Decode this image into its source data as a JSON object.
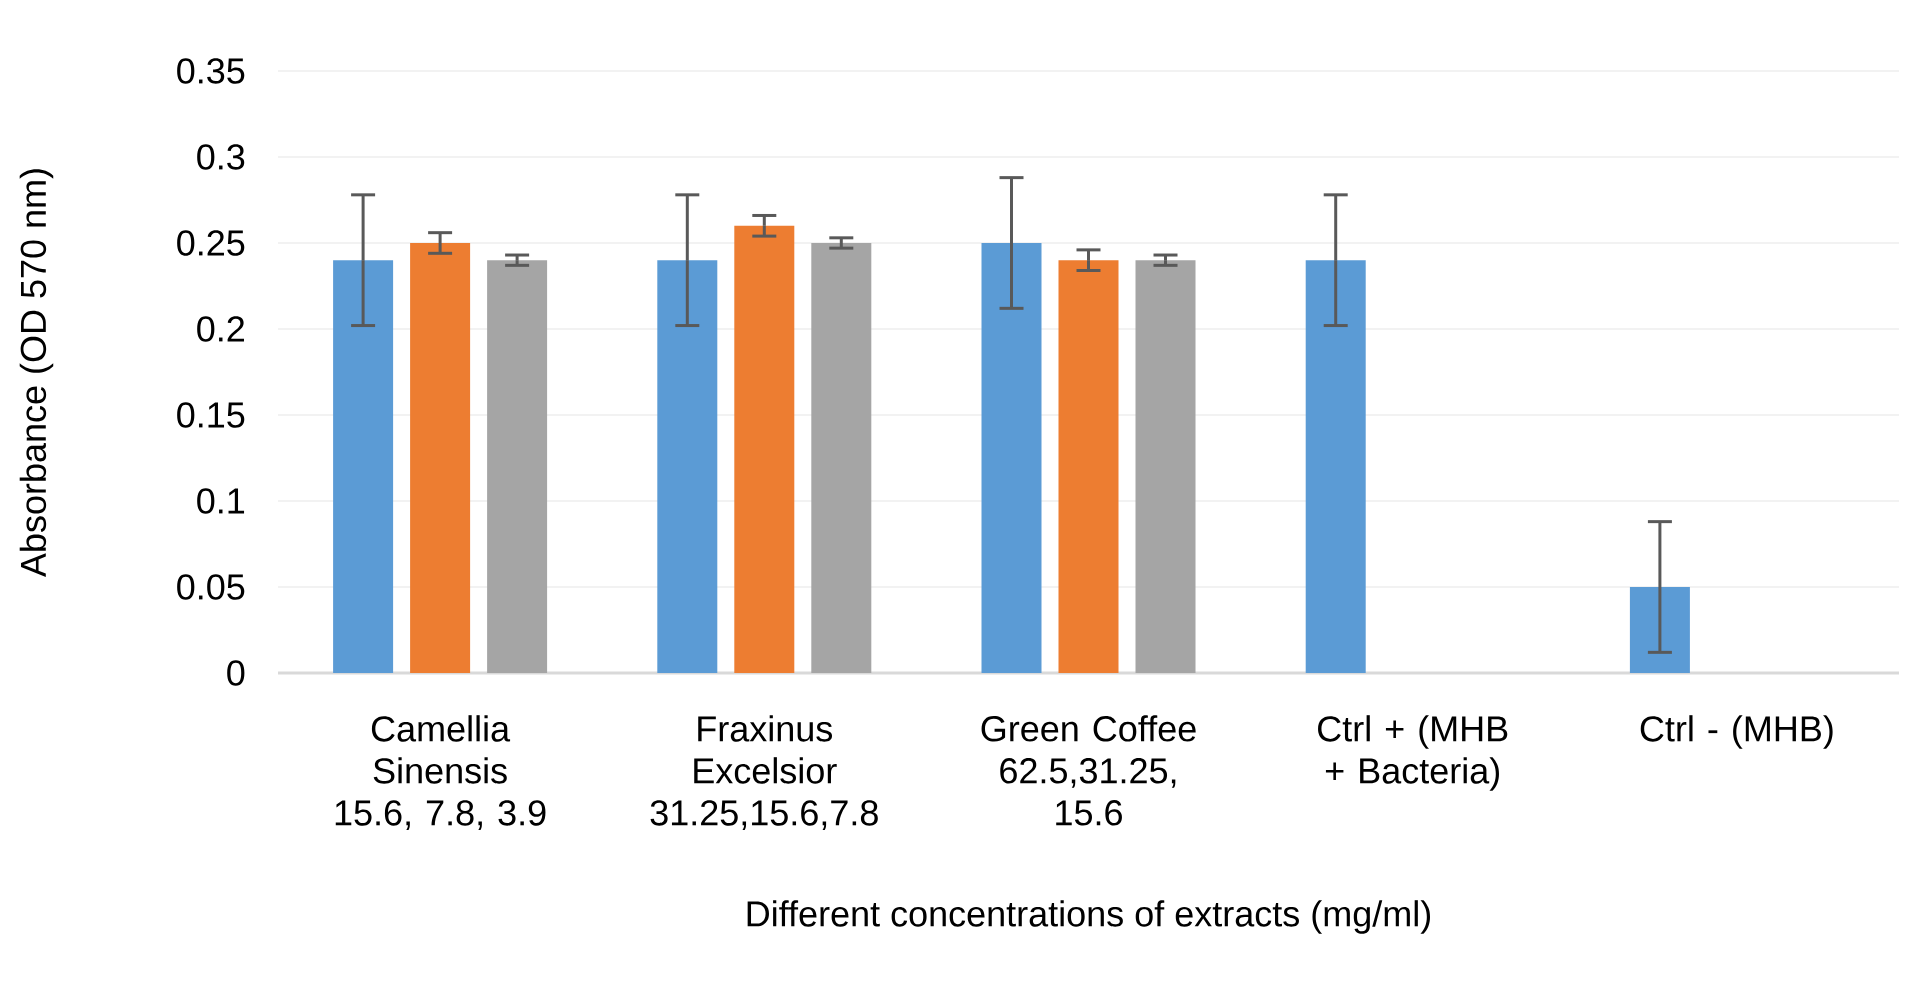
{
  "chart_data": {
    "type": "bar",
    "categories": [
      "Camellia Sinensis 15.6, 7.8, 3.9",
      "Fraxinus Excelsior 31.25,15.6,7.8",
      "Green Coffee 62.5,31.25, 15.6",
      "Ctrl + (MHB + Bacteria)",
      "Ctrl - (MHB)"
    ],
    "series": [
      {
        "color": "#5b9bd5",
        "values": [
          0.24,
          0.24,
          0.25,
          0.24,
          0.05
        ],
        "errors": [
          0.038,
          0.038,
          0.038,
          0.038,
          0.038
        ]
      },
      {
        "color": "#ed7d31",
        "values": [
          0.25,
          0.26,
          0.24,
          null,
          null
        ],
        "errors": [
          0.006,
          0.006,
          0.006,
          null,
          null
        ]
      },
      {
        "color": "#a5a5a5",
        "values": [
          0.24,
          0.25,
          0.24,
          null,
          null
        ],
        "errors": [
          0.003,
          0.003,
          0.003,
          null,
          null
        ]
      }
    ],
    "xlabel": "Different concentrations of extracts (mg/ml)",
    "ylabel": "Absorbance (OD 570 nm)",
    "ylim": [
      0,
      0.35
    ],
    "yticks": [
      0,
      0.05,
      0.1,
      0.15,
      0.2,
      0.25,
      0.3,
      0.35
    ],
    "grid": "y"
  }
}
